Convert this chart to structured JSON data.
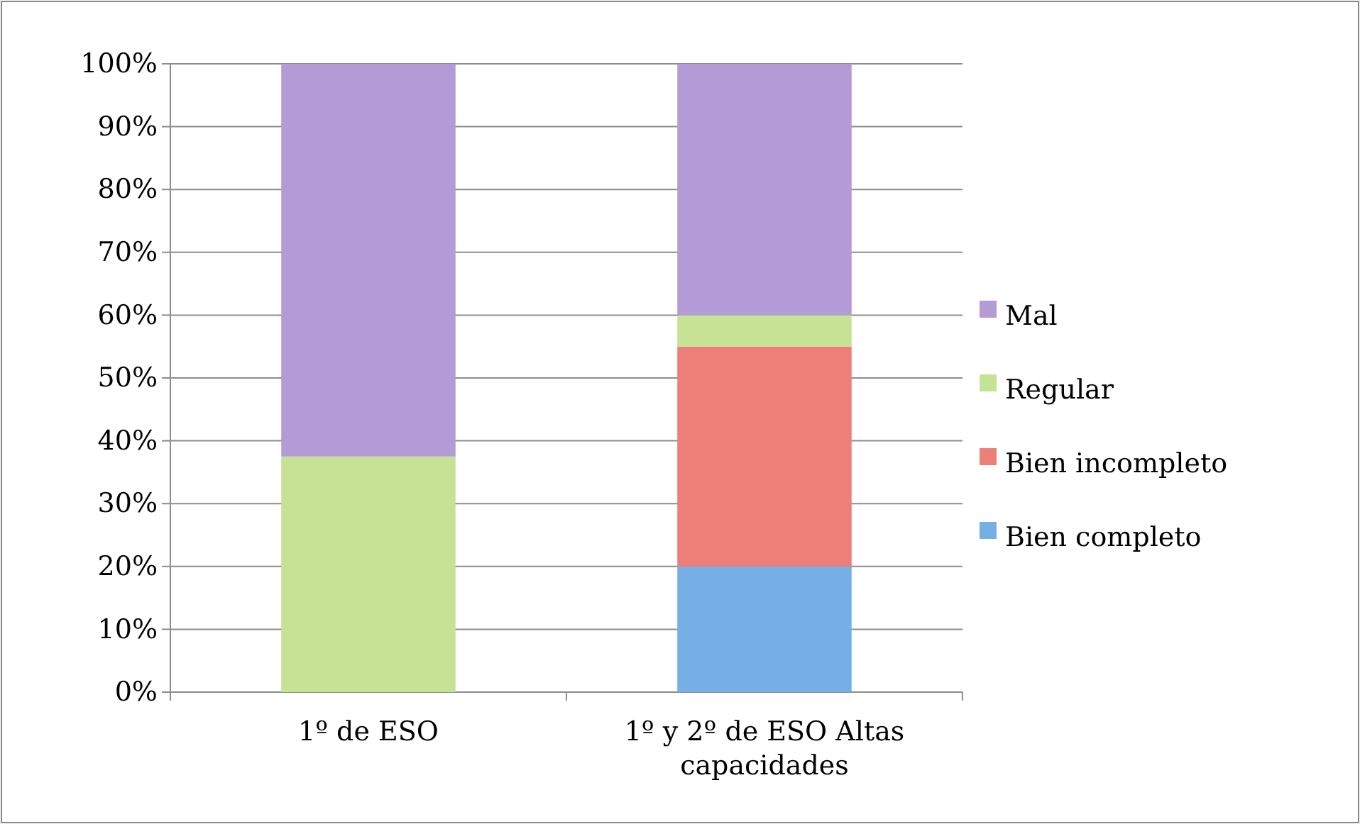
{
  "chart_data": {
    "type": "bar",
    "stacked": true,
    "categories": [
      "1º de ESO",
      "1º y 2º de ESO Altas capacidades"
    ],
    "series": [
      {
        "name": "Bien completo",
        "color": "#76aee6",
        "values": [
          0,
          20
        ]
      },
      {
        "name": "Bien incompleto",
        "color": "#ec8078",
        "values": [
          0,
          35
        ]
      },
      {
        "name": "Regular",
        "color": "#c6e294",
        "values": [
          37.5,
          5
        ]
      },
      {
        "name": "Mal",
        "color": "#b39bd6",
        "values": [
          62.5,
          40
        ]
      }
    ],
    "ylim": [
      0,
      100
    ],
    "yticks": [
      {
        "value": 0,
        "label": "0%"
      },
      {
        "value": 10,
        "label": "10%"
      },
      {
        "value": 20,
        "label": "20%"
      },
      {
        "value": 30,
        "label": "30%"
      },
      {
        "value": 40,
        "label": "40%"
      },
      {
        "value": 50,
        "label": "50%"
      },
      {
        "value": 60,
        "label": "60%"
      },
      {
        "value": 70,
        "label": "70%"
      },
      {
        "value": 80,
        "label": "80%"
      },
      {
        "value": 90,
        "label": "90%"
      },
      {
        "value": 100,
        "label": "100%"
      }
    ],
    "grid": "y",
    "legend": "right"
  }
}
